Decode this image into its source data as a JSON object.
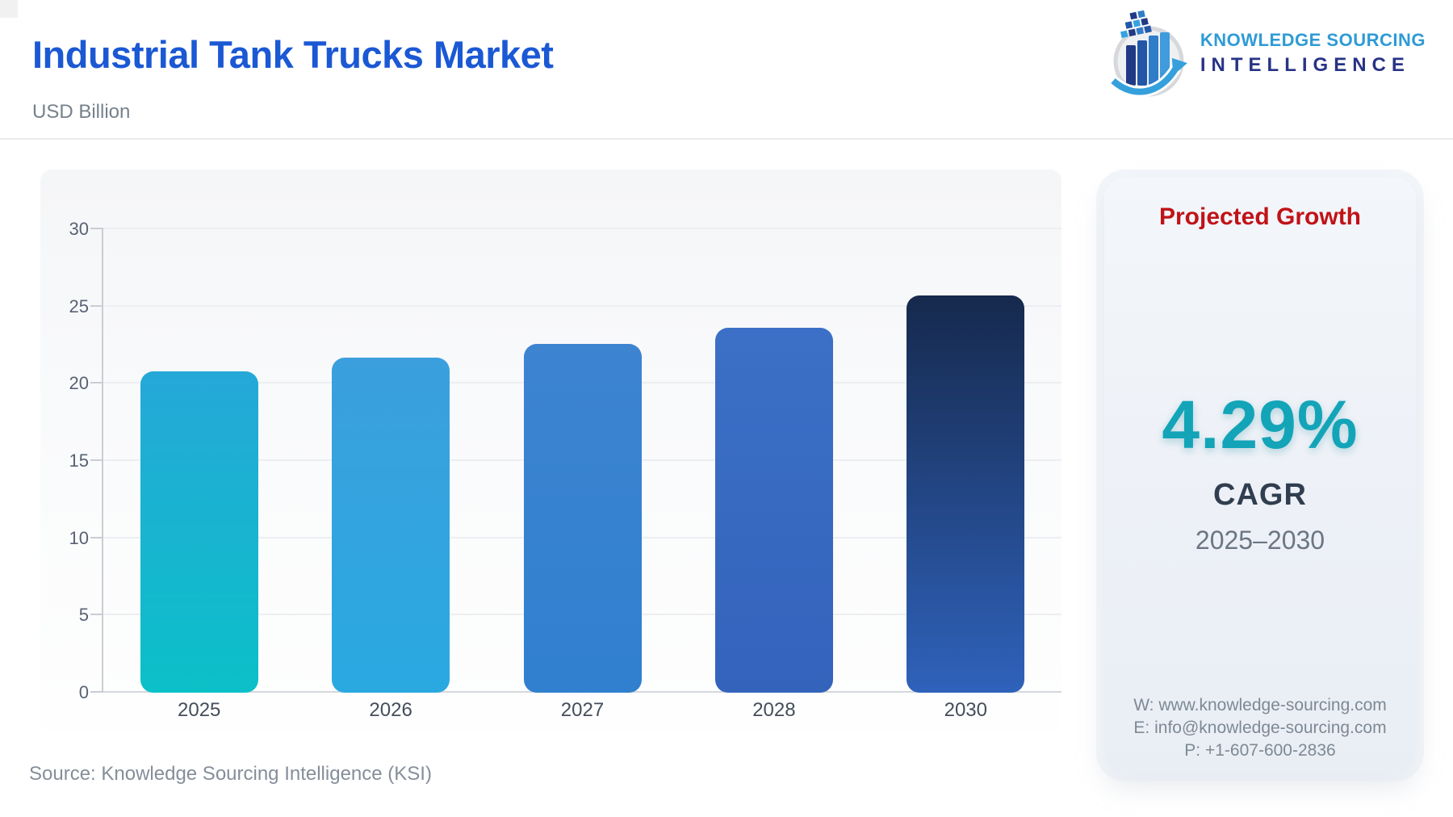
{
  "header": {
    "title": "Industrial Tank Trucks Market",
    "subtitle": "USD Billion",
    "logo": {
      "line1": "KNOWLEDGE SOURCING",
      "line2": "INTELLIGENCE"
    }
  },
  "chart_data": {
    "type": "bar",
    "title": "Industrial Tank Trucks Market",
    "units": "USD Billion",
    "categories": [
      "2025",
      "2026",
      "2027",
      "2028",
      "2030"
    ],
    "values": [
      20.8,
      21.7,
      22.6,
      23.6,
      25.7
    ],
    "ylim": [
      0,
      30
    ],
    "yticks": [
      0,
      5,
      10,
      15,
      20,
      25,
      30
    ],
    "grid": true,
    "legend": false,
    "bar_gradients": [
      [
        "#25a8d8",
        "#0bc0c8"
      ],
      [
        "#3b9fdd",
        "#2aa9e1"
      ],
      [
        "#3d84d1",
        "#3080cf"
      ],
      [
        "#3b70c6",
        "#3463bc"
      ],
      [
        "#16294d",
        "#2f62bb"
      ]
    ]
  },
  "growth_panel": {
    "title": "Projected Growth",
    "value": "4.29%",
    "metric": "CAGR",
    "period": "2025–2030",
    "contact": {
      "website": "W: www.knowledge-sourcing.com",
      "email": "E: info@knowledge-sourcing.com",
      "phone": "P: +1-607-600-2836"
    }
  },
  "footer": {
    "source": "Source: Knowledge Sourcing Intelligence (KSI)"
  },
  "colors": {
    "title_blue": "#1b58d4",
    "accent_teal": "#13a4b8",
    "accent_red": "#c01317",
    "logo_blue": "#2e9bd5",
    "logo_navy": "#273386"
  }
}
